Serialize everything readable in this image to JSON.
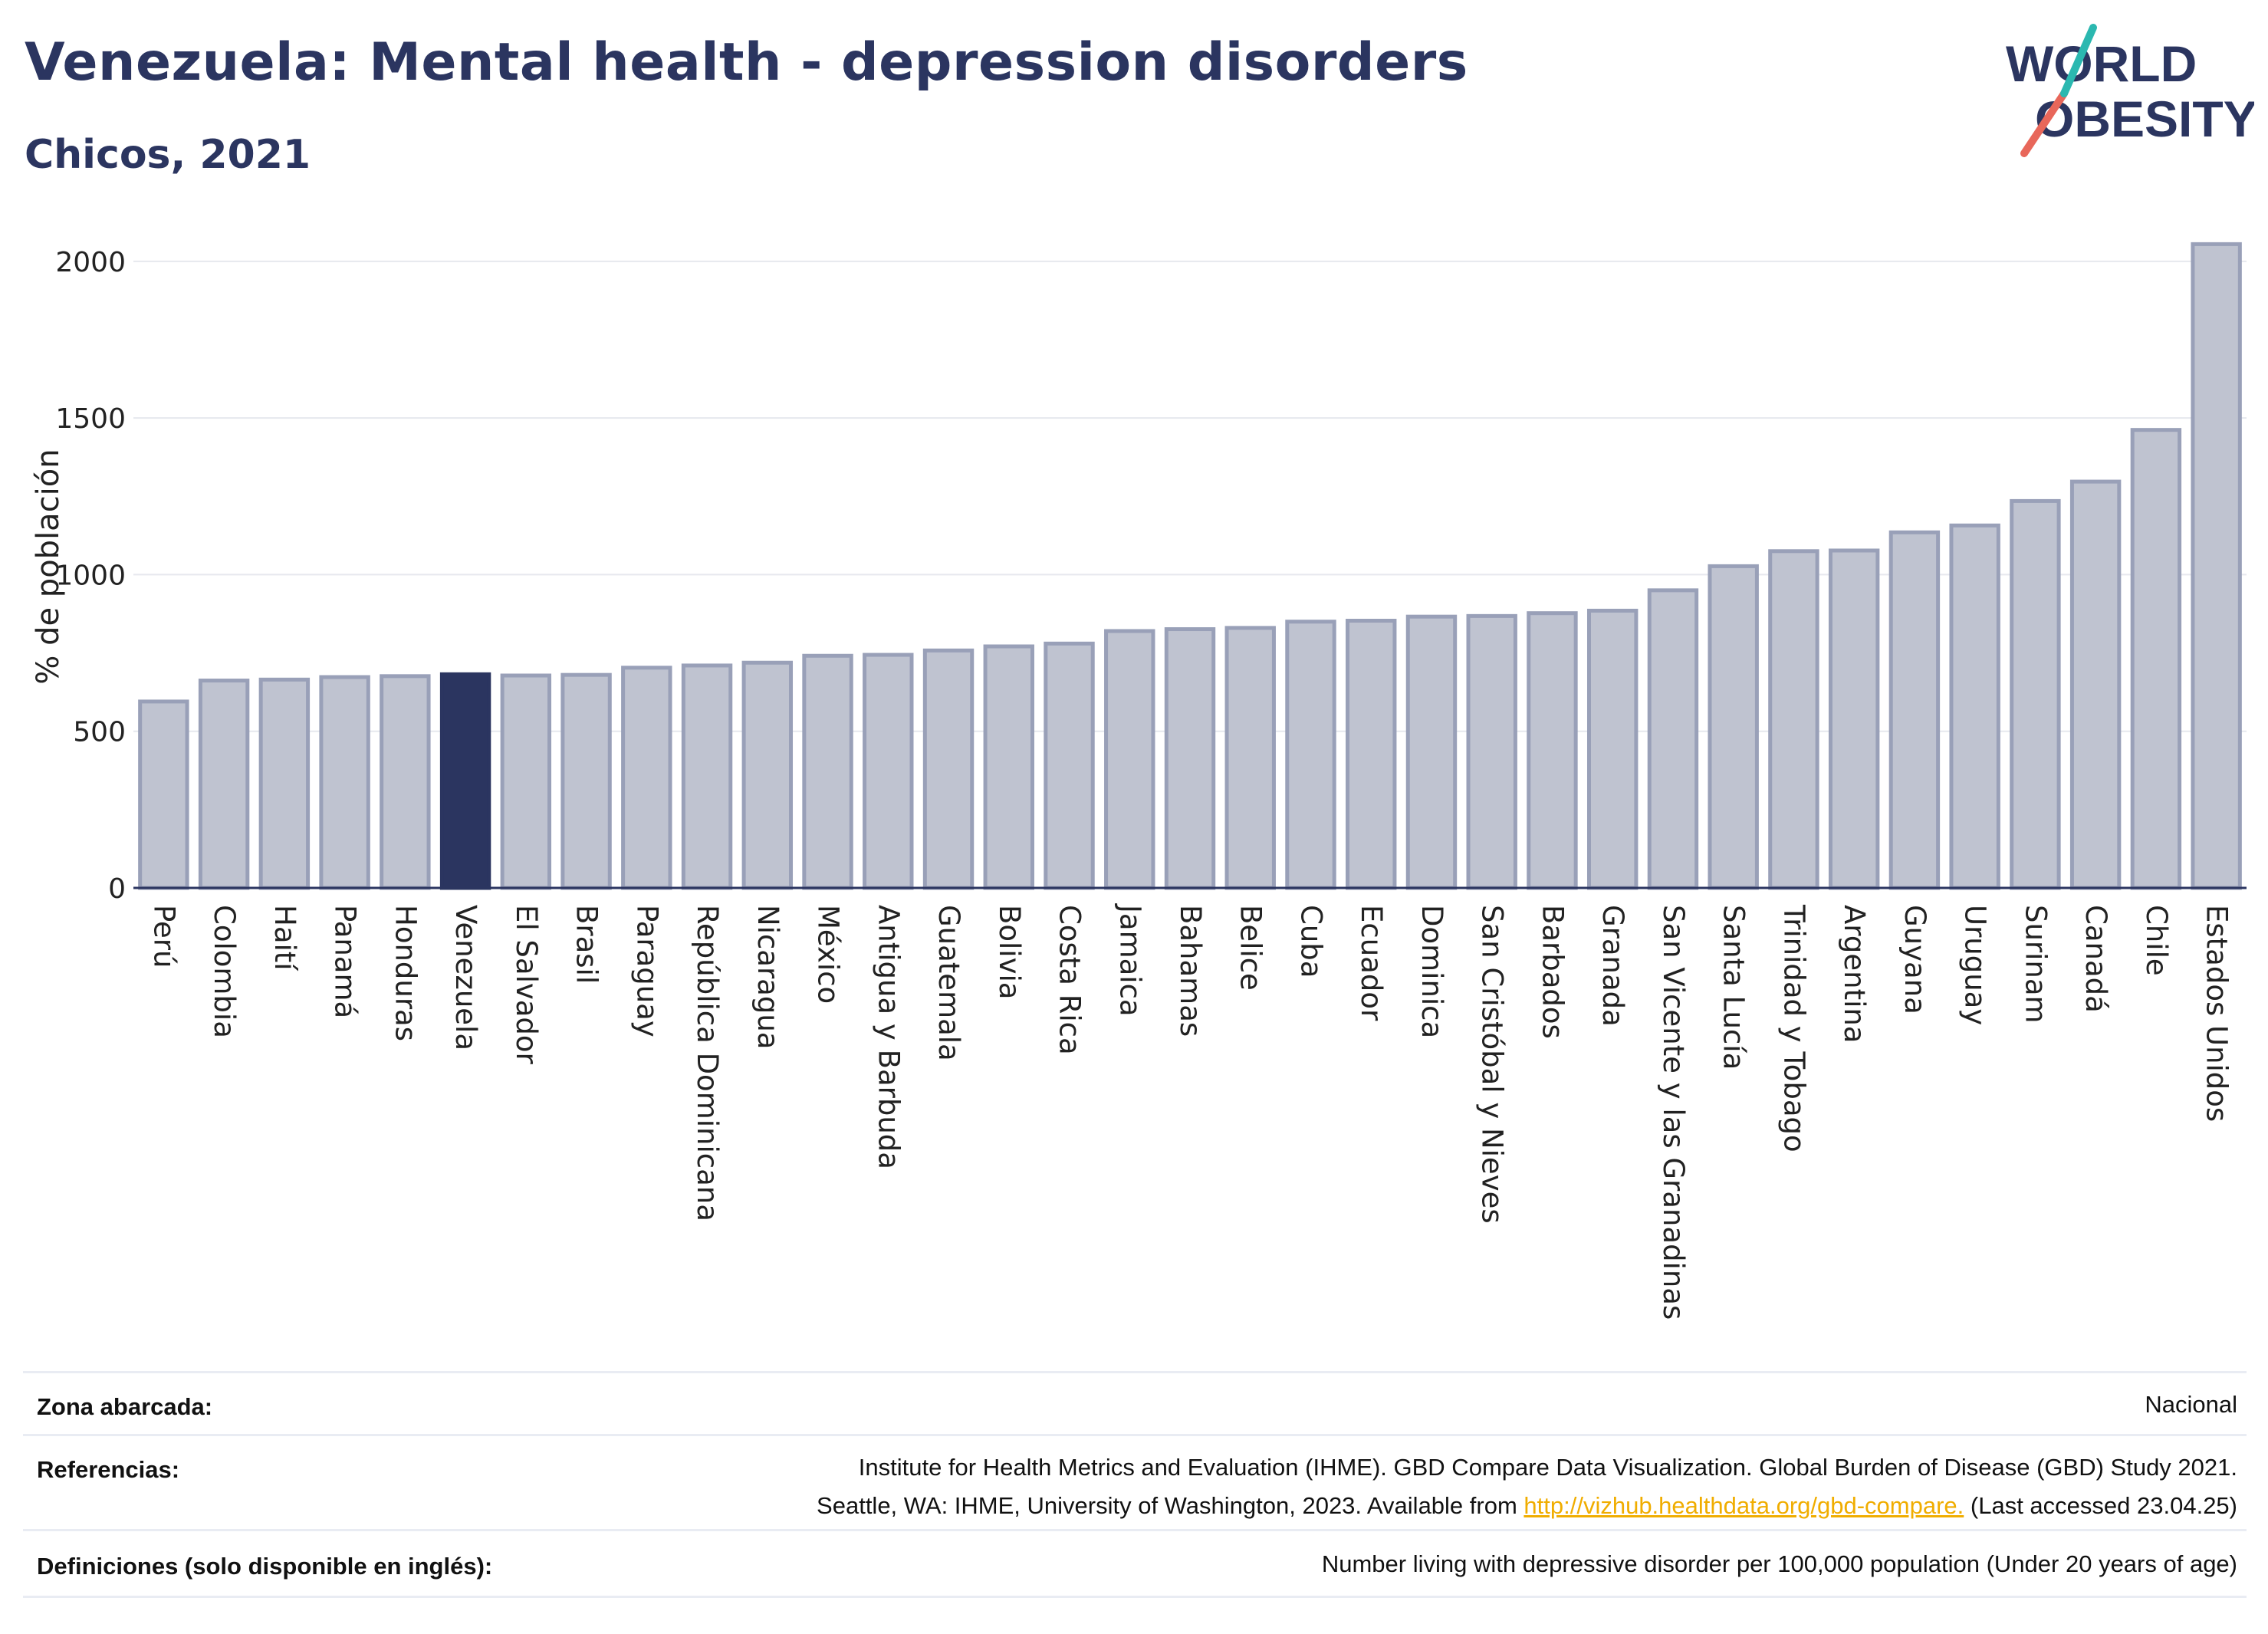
{
  "title": "Venezuela: Mental health - depression disorders",
  "subtitle": "Chicos, 2021",
  "logo": {
    "line1": "WORLD",
    "line2": "OBESITY",
    "accent_teal": "#2bb8b0",
    "accent_red": "#e8675a"
  },
  "colors": {
    "bar": "#bfc3d0",
    "bar_stroke": "#99a0b8",
    "highlight": "#2b3560",
    "grid": "#e6e8ee",
    "text": "#2b3560"
  },
  "chart_data": {
    "type": "bar",
    "ylabel": "% de población",
    "xlabel": "",
    "ylim": [
      0,
      2100
    ],
    "yticks": [
      0,
      500,
      1000,
      1500,
      2000
    ],
    "grid": true,
    "highlight": "Venezuela",
    "categories": [
      "Perú",
      "Colombia",
      "Haití",
      "Panamá",
      "Honduras",
      "Venezuela",
      "El Salvador",
      "Brasil",
      "Paraguay",
      "República Dominicana",
      "Nicaragua",
      "México",
      "Antigua y Barbuda",
      "Guatemala",
      "Bolivia",
      "Costa Rica",
      "Jamaica",
      "Bahamas",
      "Belice",
      "Cuba",
      "Ecuador",
      "Dominica",
      "San Cristóbal y Nieves",
      "Barbados",
      "Granada",
      "San Vicente y las Granadinas",
      "Santa Lucía",
      "Trinidad y Tobago",
      "Argentina",
      "Guyana",
      "Uruguay",
      "Surinam",
      "Canadá",
      "Chile",
      "Estados Unidos"
    ],
    "values": [
      595,
      662,
      665,
      673,
      676,
      682,
      678,
      680,
      703,
      710,
      719,
      741,
      744,
      758,
      771,
      780,
      820,
      826,
      830,
      850,
      853,
      866,
      868,
      877,
      885,
      950,
      1027,
      1075,
      1077,
      1135,
      1157,
      1235,
      1297,
      1462,
      2055
    ]
  },
  "footer": {
    "rows": [
      {
        "label": "Zona abarcada:",
        "lines": [
          "Nacional"
        ]
      },
      {
        "label": "Referencias:",
        "lines": [
          "Institute for Health Metrics and Evaluation (IHME). GBD Compare Data Visualization. Global Burden of Disease (GBD) Study 2021.",
          "Seattle, WA: IHME, University of Washington, 2023. Available from "
        ],
        "link": "http://vizhub.healthdata.org/gbd-compare.",
        "after_link": " (Last accessed 23.04.25)"
      },
      {
        "label": "Definiciones (solo disponible en inglés):",
        "lines": [
          "Number living with depressive disorder per 100,000 population (Under 20 years of age)"
        ]
      }
    ]
  }
}
